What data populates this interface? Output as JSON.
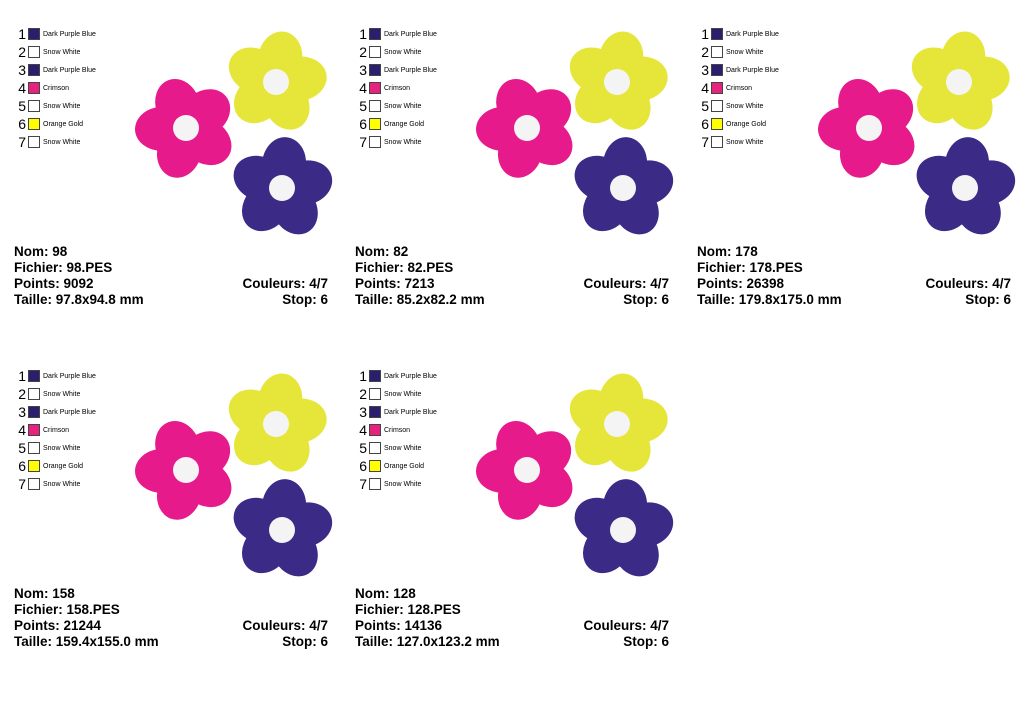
{
  "colors": {
    "dark_purple_blue": "#2a1f6e",
    "snow_white": "#ffffff",
    "crimson": "#e6227e",
    "orange_gold": "#ffff00",
    "flower_yellow": "#e6e63a",
    "flower_pink": "#e61a8a",
    "flower_purple": "#3b2a86",
    "center_white": "#f4f4f4"
  },
  "palette": [
    {
      "num": "1",
      "name": "Dark Purple Blue",
      "color": "#2a1f6e"
    },
    {
      "num": "2",
      "name": "Snow White",
      "color": "#ffffff"
    },
    {
      "num": "3",
      "name": "Dark Purple Blue",
      "color": "#2a1f6e"
    },
    {
      "num": "4",
      "name": "Crimson",
      "color": "#e6227e"
    },
    {
      "num": "5",
      "name": "Snow White",
      "color": "#ffffff"
    },
    {
      "num": "6",
      "name": "Orange Gold",
      "color": "#ffff00"
    },
    {
      "num": "7",
      "name": "Snow White",
      "color": "#ffffff"
    }
  ],
  "designs": [
    {
      "nom": "Nom: 98",
      "fichier": "Fichier: 98.PES",
      "points": "Points: 9092",
      "couleurs": "Couleurs: 4/7",
      "taille": "Taille: 97.8x94.8 mm",
      "stop": "Stop: 6"
    },
    {
      "nom": "Nom: 82",
      "fichier": "Fichier: 82.PES",
      "points": "Points: 7213",
      "couleurs": "Couleurs: 4/7",
      "taille": "Taille: 85.2x82.2 mm",
      "stop": "Stop: 6"
    },
    {
      "nom": "Nom: 178",
      "fichier": "Fichier: 178.PES",
      "points": "Points: 26398",
      "couleurs": "Couleurs: 4/7",
      "taille": "Taille: 179.8x175.0 mm",
      "stop": "Stop: 6"
    },
    {
      "nom": "Nom: 158",
      "fichier": "Fichier: 158.PES",
      "points": "Points: 21244",
      "couleurs": "Couleurs: 4/7",
      "taille": "Taille: 159.4x155.0 mm",
      "stop": "Stop: 6"
    },
    {
      "nom": "Nom: 128",
      "fichier": "Fichier: 128.PES",
      "points": "Points: 14136",
      "couleurs": "Couleurs: 4/7",
      "taille": "Taille: 127.0x123.2 mm",
      "stop": "Stop: 6"
    }
  ]
}
